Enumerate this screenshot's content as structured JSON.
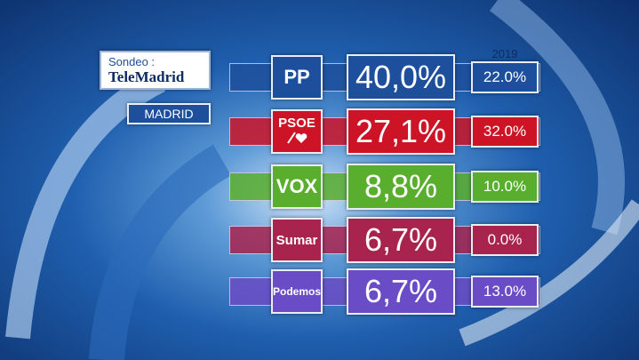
{
  "header": {
    "source_prefix": "Sondeo :",
    "source": "TeleMadrid",
    "region": "MADRID",
    "previous_year": "2019"
  },
  "table": {
    "rows": [
      {
        "party": "PP",
        "current": "40,0%",
        "previous": "22.0%",
        "color": "#1e4f9c"
      },
      {
        "party": "PSOE",
        "current": "27,1%",
        "previous": "32.0%",
        "color": "#cc1426"
      },
      {
        "party": "VOX",
        "current": "8,8%",
        "previous": "10.0%",
        "color": "#5aae2e"
      },
      {
        "party": "Sumar",
        "current": "6,7%",
        "previous": "0.0%",
        "color": "#a8244f"
      },
      {
        "party": "Podemos",
        "current": "6,7%",
        "previous": "13.0%",
        "color": "#6a4dc6"
      }
    ]
  }
}
